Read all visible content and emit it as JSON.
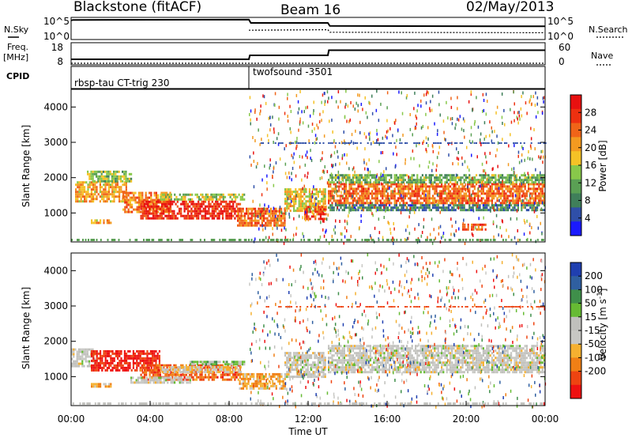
{
  "header": {
    "station": "Blackstone (fitACF)",
    "beam": "Beam 16",
    "date": "02/May/2013"
  },
  "panel_labels": {
    "nsky": "N.Sky",
    "freq_top": "Freq.",
    "freq_unit": "[MHz]",
    "cpid": "CPID",
    "nsearch": "N.Search",
    "nave": "Nave",
    "power_cbar": "Power [dB]",
    "velocity_cbar": "Velocity [m s",
    "velocity_sup": "-1",
    "velocity_close": "]"
  },
  "cpid_modes": [
    {
      "name": "rbsp-tau CT-trig 230",
      "start_hour": 0
    },
    {
      "name": "twofsound -3501",
      "start_hour": 9.0
    }
  ],
  "colors": {
    "power": [
      "#1a1aff",
      "#2f4fa8",
      "#3f7f5a",
      "#5aa054",
      "#88c84a",
      "#f5c226",
      "#f39a20",
      "#f06418",
      "#ee3010",
      "#e81010"
    ],
    "velocity": [
      "#ee1111",
      "#ee4411",
      "#f07f15",
      "#f5b030",
      "#c8c8c4",
      "#c0c0bc",
      "#66bb33",
      "#3f8f4a",
      "#2f5fa0",
      "#1f3fb0"
    ]
  },
  "chart_data": [
    {
      "type": "line",
      "name_label": "N.Sky / N.Search",
      "ylabels": [
        "10^5",
        "10^0"
      ],
      "ylabels_right": [
        "10^5",
        "10^0"
      ],
      "xlim": [
        0,
        24
      ],
      "series": [
        {
          "name": "N.Sky",
          "x": [
            0,
            0.1,
            9.0,
            9.1,
            13.0,
            13.1,
            24
          ],
          "y": [
            4.5,
            4.6,
            4.7,
            3.9,
            3.9,
            3.2,
            3.1
          ]
        },
        {
          "name": "N.Search",
          "x": [
            9.0,
            13.0,
            13.1,
            24
          ],
          "y": [
            2.2,
            2.3,
            1.7,
            1.6
          ]
        }
      ]
    },
    {
      "type": "line",
      "name_label": "Freq. / Nave",
      "yticks_left": [
        "18",
        "8"
      ],
      "yticks_right": [
        "60",
        "0"
      ],
      "xlim": [
        0,
        24
      ],
      "series": [
        {
          "name": "Freq.",
          "x": [
            0,
            0.1,
            9.0,
            9.05,
            13.0,
            13.05,
            24
          ],
          "y": [
            10.5,
            10.5,
            10.5,
            12.3,
            12.3,
            14.6,
            14.6
          ]
        },
        {
          "name": "Nave",
          "x": [
            0,
            24
          ],
          "y": [
            8.7,
            8.7
          ]
        }
      ]
    },
    {
      "type": "heatmap",
      "ylabel": "Slant Range [km]",
      "xlim": [
        0,
        24
      ],
      "ylim": [
        180,
        4500
      ],
      "yticks": [
        1000,
        2000,
        3000,
        4000
      ],
      "colorbar_ticks": [
        4,
        8,
        12,
        16,
        20,
        24,
        28
      ],
      "colorbar_range": [
        0,
        32
      ],
      "value_field": "power",
      "regions": [
        {
          "t0": 0.2,
          "t1": 2.8,
          "r0": 1300,
          "r1": 1900,
          "value": 20
        },
        {
          "t0": 0.8,
          "t1": 3.0,
          "r0": 1900,
          "r1": 2200,
          "value": 14
        },
        {
          "t0": 2.6,
          "t1": 5.0,
          "r0": 1000,
          "r1": 1600,
          "value": 22
        },
        {
          "t0": 3.5,
          "t1": 8.6,
          "r0": 850,
          "r1": 1350,
          "value": 28
        },
        {
          "t0": 4.5,
          "t1": 8.8,
          "r0": 1350,
          "r1": 1550,
          "value": 15
        },
        {
          "t0": 8.4,
          "t1": 10.8,
          "r0": 650,
          "r1": 1150,
          "value": 24
        },
        {
          "t0": 10.8,
          "t1": 12.9,
          "r0": 1050,
          "r1": 1700,
          "value": 18
        },
        {
          "t0": 11.8,
          "t1": 12.9,
          "r0": 850,
          "r1": 1200,
          "value": 26
        },
        {
          "t0": 13.0,
          "t1": 24.0,
          "r0": 1250,
          "r1": 1850,
          "value": 24
        },
        {
          "t0": 13.0,
          "t1": 24.0,
          "r0": 1850,
          "r1": 2100,
          "value": 12
        },
        {
          "t0": 13.0,
          "t1": 24.0,
          "r0": 1050,
          "r1": 1250,
          "value": 8
        },
        {
          "t0": 1.0,
          "t1": 2.0,
          "r0": 700,
          "r1": 820,
          "value": 20
        },
        {
          "t0": 19.8,
          "t1": 21.0,
          "r0": 550,
          "r1": 700,
          "value": 26
        }
      ]
    },
    {
      "type": "heatmap",
      "ylabel": "Slant Range [km]",
      "xlabel": "Time UT",
      "xlim": [
        0,
        24
      ],
      "ylim": [
        180,
        4500
      ],
      "yticks": [
        1000,
        2000,
        3000,
        4000
      ],
      "xticks": [
        "00:00",
        "04:00",
        "08:00",
        "12:00",
        "16:00",
        "20:00",
        "00:00"
      ],
      "colorbar_ticks": [
        200,
        100,
        50,
        15,
        -15,
        -50,
        -100,
        -200
      ],
      "colorbar_range": [
        -250,
        250
      ],
      "value_field": "velocity",
      "regions": [
        {
          "t0": 0.0,
          "t1": 1.2,
          "r0": 1300,
          "r1": 1800,
          "value": 0
        },
        {
          "t0": 1.0,
          "t1": 4.5,
          "r0": 1200,
          "r1": 1750,
          "value": -220
        },
        {
          "t0": 3.5,
          "t1": 8.6,
          "r0": 900,
          "r1": 1350,
          "value": -150
        },
        {
          "t0": 4.5,
          "t1": 8.6,
          "r0": 1150,
          "r1": 1300,
          "value": -40
        },
        {
          "t0": 6.0,
          "t1": 8.8,
          "r0": 1350,
          "r1": 1450,
          "value": 60
        },
        {
          "t0": 3.0,
          "t1": 6.0,
          "r0": 800,
          "r1": 1000,
          "value": 0
        },
        {
          "t0": 8.5,
          "t1": 10.8,
          "r0": 650,
          "r1": 1100,
          "value": -80
        },
        {
          "t0": 10.8,
          "t1": 12.9,
          "r0": 1000,
          "r1": 1700,
          "value": 0
        },
        {
          "t0": 13.0,
          "t1": 24.0,
          "r0": 1150,
          "r1": 1900,
          "value": 0
        },
        {
          "t0": 1.0,
          "t1": 2.0,
          "r0": 700,
          "r1": 820,
          "value": -80
        }
      ]
    }
  ]
}
